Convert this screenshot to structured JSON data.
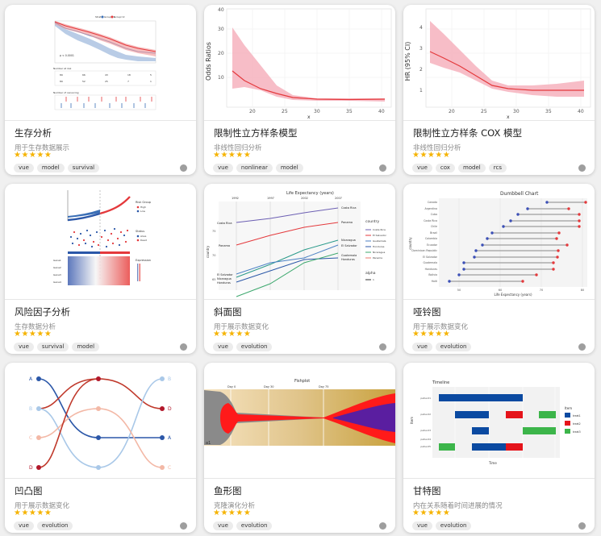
{
  "cards": [
    {
      "title": "生存分析",
      "desc": "用于生存数据展示",
      "stars": "★★★★★",
      "tags": [
        "vue",
        "model",
        "survival"
      ],
      "thumb": {
        "legend": [
          "Strata",
          "Group=1",
          "Group=2"
        ],
        "pvalue": "p < 0.0001",
        "num_risk": "Number at risk",
        "num_censor": "Number of censoring"
      }
    },
    {
      "title": "限制性立方样条模型",
      "desc": "非线性回归分析",
      "stars": "★★★★★",
      "tags": [
        "vue",
        "nonlinear",
        "model"
      ],
      "thumb": {
        "ylabel": "Odds Ratios",
        "xlabel": "x",
        "xticks": [
          "20",
          "25",
          "30",
          "35",
          "40"
        ],
        "yticks": [
          "10",
          "20",
          "30",
          "40"
        ]
      }
    },
    {
      "title": "限制性立方样条 COX 模型",
      "desc": "非线性回归分析",
      "stars": "★★★★★",
      "tags": [
        "vue",
        "cox",
        "model",
        "rcs"
      ],
      "thumb": {
        "ylabel": "HR (95% CI)",
        "xlabel": "x",
        "xticks": [
          "20",
          "25",
          "30",
          "35",
          "40"
        ],
        "yticks": [
          "1",
          "2",
          "3",
          "4"
        ]
      }
    },
    {
      "title": "风险因子分析",
      "desc": "生存数据分析",
      "stars": "★★★★★",
      "tags": [
        "vue",
        "survival",
        "model"
      ],
      "thumb": {
        "risk_group": "Risk Group",
        "high": "High",
        "low": "Low",
        "status": "Status",
        "alive": "Alive",
        "dead": "Dead",
        "expression": "Expression",
        "rows": [
          "Gene1",
          "Gene2",
          "Gene3",
          "Gene4"
        ]
      }
    },
    {
      "title": "斜面图",
      "desc": "用于展示数据变化",
      "stars": "★★★★★",
      "tags": [
        "vue",
        "evolution"
      ],
      "thumb": {
        "title": "Life Expectancy (years)",
        "years": [
          "1992",
          "1997",
          "2002",
          "2007"
        ],
        "ylabel": "country",
        "yticks": [
          "75",
          "70",
          "65"
        ],
        "legend_title": "country",
        "countries": [
          "Costa Rica",
          "El Salvador",
          "Guatemala",
          "Honduras",
          "Nicaragua",
          "Panama"
        ],
        "alpha": "alpha",
        "alpha_val": "1",
        "left_labels": [
          "Costa Rica",
          "Panama",
          "El Salvador",
          "Nicaragua",
          "Honduras"
        ],
        "right_labels": [
          "Costa Rica",
          "Panama",
          "Nicaragua",
          "El Salvador",
          "Guatemala",
          "Honduras"
        ]
      }
    },
    {
      "title": "哑铃图",
      "desc": "用于展示数据变化",
      "stars": "★★★★★",
      "tags": [
        "vue",
        "evolution"
      ],
      "thumb": {
        "title": "Dumbbell Chart",
        "xlabel": "Life Expectancy (years)",
        "ylabel": "country",
        "xticks": [
          "50",
          "60",
          "70",
          "80"
        ],
        "countries": [
          "Canada",
          "Argentina",
          "Cuba",
          "Costa Rica",
          "Chile",
          "Brazil",
          "Colombia",
          "Ecuador",
          "Dominican Republic",
          "El Salvador",
          "Guatemala",
          "Honduras",
          "Bolivia",
          "Haiti"
        ]
      }
    },
    {
      "title": "凹凸图",
      "desc": "用于展示数据变化",
      "stars": "★★★★★",
      "tags": [
        "vue",
        "evolution"
      ],
      "thumb": {
        "left": [
          "A",
          "B",
          "C",
          "D"
        ],
        "right": [
          "B",
          "D",
          "A",
          "C"
        ]
      }
    },
    {
      "title": "鱼形图",
      "desc": "克隆演化分析",
      "stars": "★★★★★",
      "tags": [
        "vue",
        "evolution"
      ],
      "thumb": {
        "title": "Fishplot",
        "days": [
          "Day 0",
          "Day 30",
          "Day 75"
        ],
        "label": "a1"
      }
    },
    {
      "title": "甘特图",
      "desc": "内在关系随着时间进展的情况",
      "stars": "★★★★★",
      "tags": [
        "vue",
        "evolution"
      ],
      "thumb": {
        "title": "Timeline",
        "xlabel": "Time",
        "ylabel": "Item",
        "rows": [
          "patient1",
          "patient2",
          "patient3",
          "patient4",
          "patient5"
        ],
        "legend_title": "Item",
        "legend": [
          "treat1",
          "treat2",
          "treat3"
        ]
      }
    }
  ],
  "colors": {
    "star": "#f5b301",
    "accent_red": "#e4393c",
    "accent_blue": "#2b57a8"
  }
}
